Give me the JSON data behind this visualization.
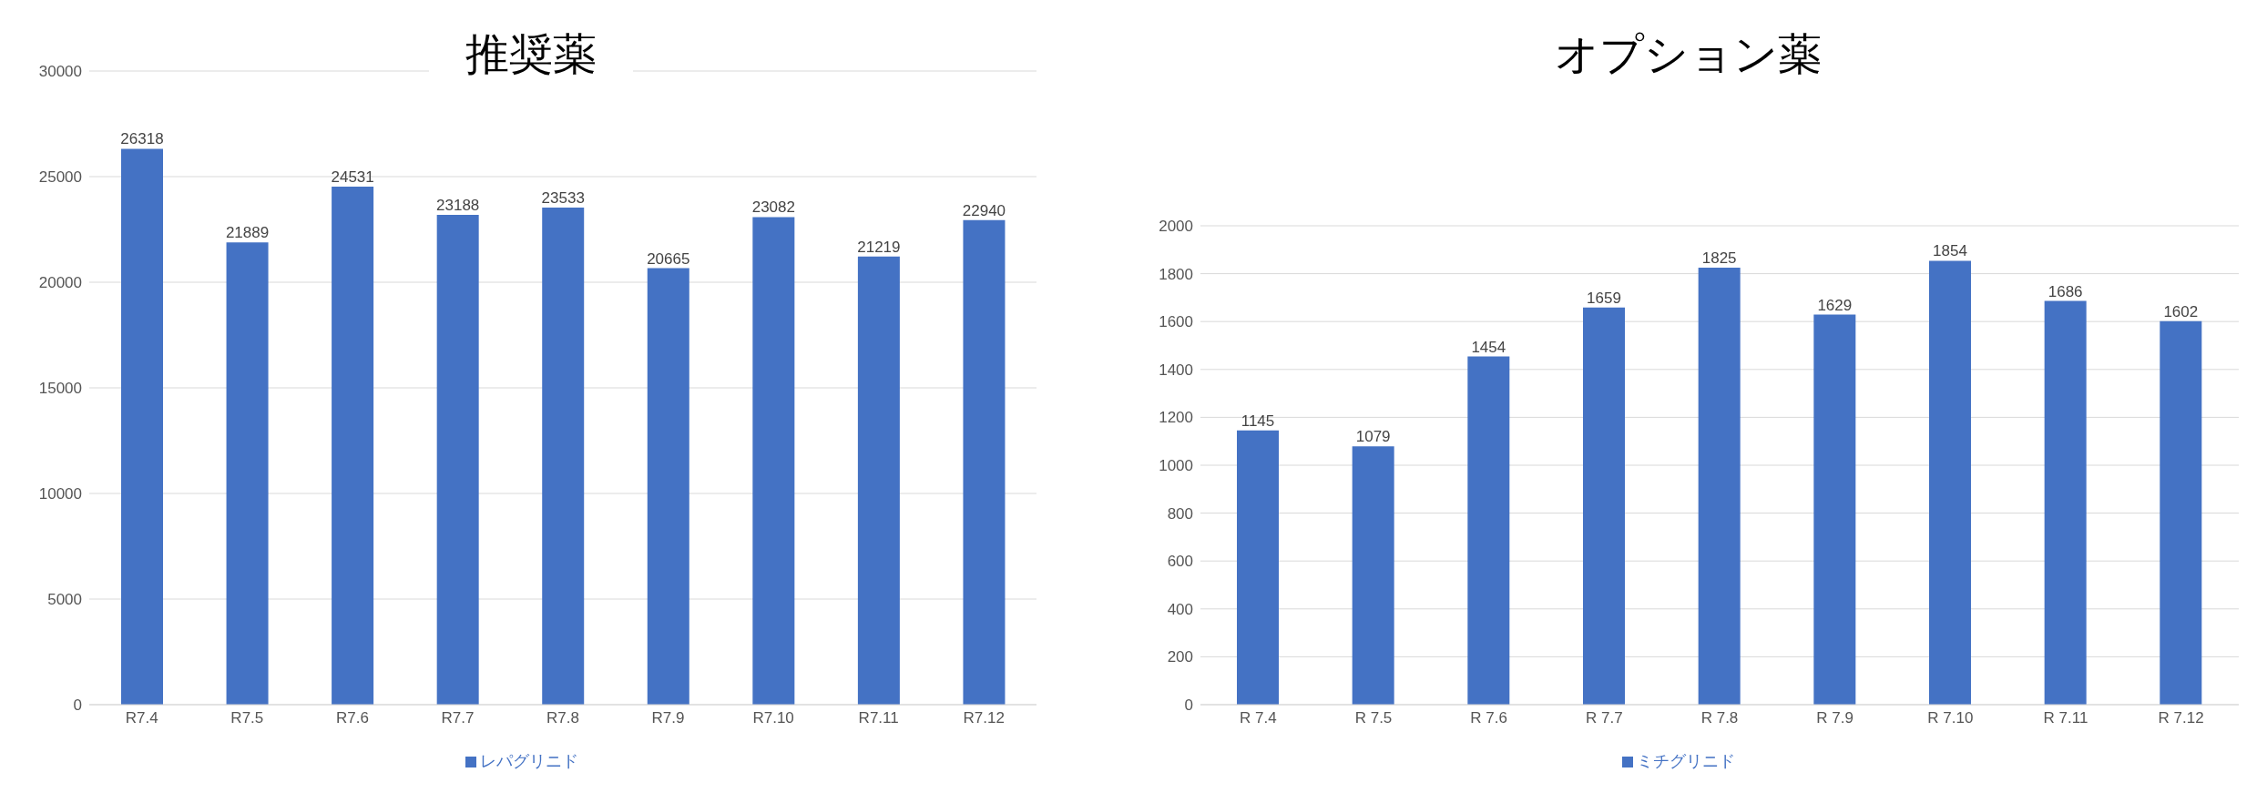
{
  "chart_data": [
    {
      "type": "bar",
      "title": "推奨薬",
      "categories": [
        "R7.4",
        "R7.5",
        "R7.6",
        "R7.7",
        "R7.8",
        "R7.9",
        "R7.10",
        "R7.11",
        "R7.12"
      ],
      "series": [
        {
          "name": "レパグリニド",
          "color": "#4472c4",
          "values": [
            26318,
            21889,
            24531,
            23188,
            23533,
            20665,
            23082,
            21219,
            22940
          ]
        }
      ],
      "ylim": [
        0,
        30000
      ],
      "yticks": [
        0,
        5000,
        10000,
        15000,
        20000,
        25000,
        30000
      ],
      "grid": "y",
      "legend": "bottom",
      "data_labels": true
    },
    {
      "type": "bar",
      "title": "オプション薬",
      "categories": [
        "R 7.4",
        "R 7.5",
        "R 7.6",
        "R 7.7",
        "R 7.8",
        "R 7.9",
        "R 7.10",
        "R 7.11",
        "R 7.12"
      ],
      "series": [
        {
          "name": "ミチグリニド",
          "color": "#4472c4",
          "values": [
            1145,
            1079,
            1454,
            1659,
            1825,
            1629,
            1854,
            1686,
            1602
          ]
        }
      ],
      "ylim": [
        0,
        2000
      ],
      "yticks": [
        0,
        200,
        400,
        600,
        800,
        1000,
        1200,
        1400,
        1600,
        1800,
        2000
      ],
      "grid": "y",
      "legend": "bottom",
      "data_labels": true
    }
  ]
}
